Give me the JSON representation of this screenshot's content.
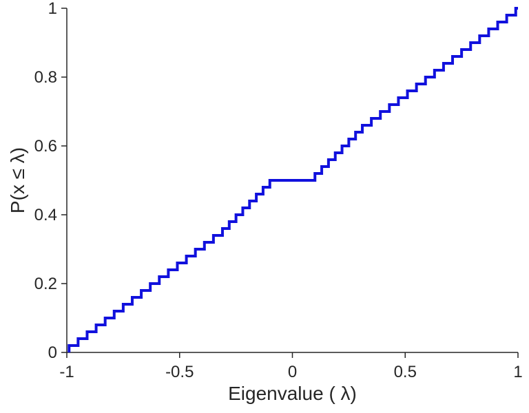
{
  "figure": {
    "background": "#ffffff"
  },
  "chart_data": {
    "type": "line",
    "subtype": "ecdf-stairs",
    "title": "",
    "xlabel": "Eigenvalue (  λ)",
    "ylabel": "P(x ≤ λ)",
    "xlim": [
      -1,
      1
    ],
    "ylim": [
      0,
      1
    ],
    "x_ticks": [
      -1,
      -0.5,
      0,
      0.5,
      1
    ],
    "x_tick_labels": [
      "-1",
      "-0.5",
      "0",
      "0.5",
      "1"
    ],
    "y_ticks": [
      0,
      0.2,
      0.4,
      0.6,
      0.8,
      1
    ],
    "y_tick_labels": [
      "0",
      "0.2",
      "0.4",
      "0.6",
      "0.8",
      "1"
    ],
    "grid": false,
    "legend": null,
    "line_color": "#1111dd",
    "line_width": 4,
    "axis_color": "#262626",
    "x": [
      -0.99,
      -0.95,
      -0.91,
      -0.87,
      -0.83,
      -0.79,
      -0.75,
      -0.71,
      -0.67,
      -0.63,
      -0.59,
      -0.55,
      -0.51,
      -0.47,
      -0.43,
      -0.39,
      -0.35,
      -0.31,
      -0.28,
      -0.25,
      -0.22,
      -0.19,
      -0.16,
      -0.13,
      -0.1,
      0.1,
      0.13,
      0.16,
      0.19,
      0.22,
      0.25,
      0.28,
      0.31,
      0.35,
      0.39,
      0.43,
      0.47,
      0.51,
      0.55,
      0.59,
      0.63,
      0.67,
      0.71,
      0.75,
      0.79,
      0.83,
      0.87,
      0.91,
      0.95,
      0.99
    ],
    "y": [
      0.02,
      0.04,
      0.06,
      0.08,
      0.1,
      0.12,
      0.14,
      0.16,
      0.18,
      0.2,
      0.22,
      0.24,
      0.26,
      0.28,
      0.3,
      0.32,
      0.34,
      0.36,
      0.38,
      0.4,
      0.42,
      0.44,
      0.46,
      0.48,
      0.5,
      0.52,
      0.54,
      0.56,
      0.58,
      0.6,
      0.62,
      0.64,
      0.66,
      0.68,
      0.7,
      0.72,
      0.74,
      0.76,
      0.78,
      0.8,
      0.82,
      0.84,
      0.86,
      0.88,
      0.9,
      0.92,
      0.94,
      0.96,
      0.98,
      1.0
    ]
  }
}
